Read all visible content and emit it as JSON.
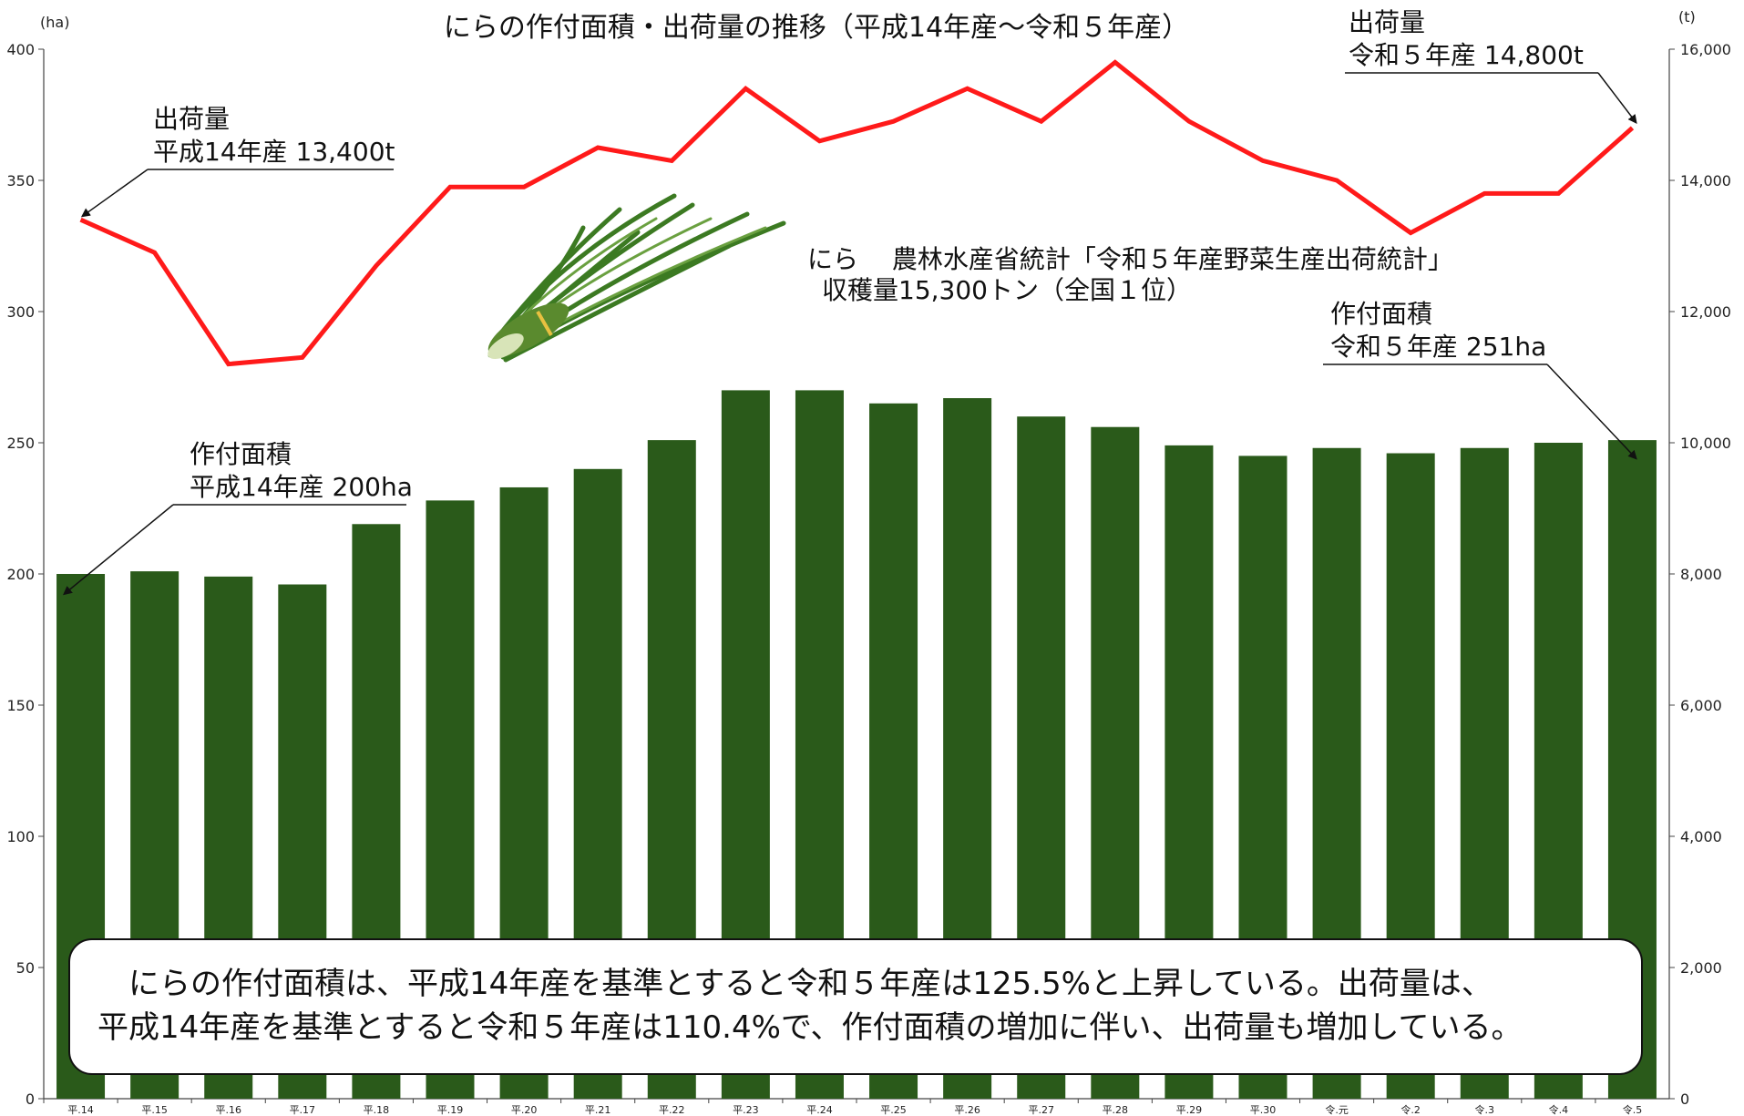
{
  "chart_data": {
    "type": "bar+line",
    "title": "にらの作付面積・出荷量の推移（平成14年産～令和５年産）",
    "y_left_unit": "(ha)",
    "y_right_unit": "(t)",
    "y_left_ticks": [
      "0",
      "50",
      "100",
      "150",
      "200",
      "250",
      "300",
      "350",
      "400"
    ],
    "y_right_ticks": [
      "0",
      "2,000",
      "4,000",
      "6,000",
      "8,000",
      "10,000",
      "12,000",
      "14,000",
      "16,000"
    ],
    "y_left_range": [
      0,
      400
    ],
    "y_right_range": [
      0,
      16000
    ],
    "categories": [
      "平.14",
      "平.15",
      "平.16",
      "平.17",
      "平.18",
      "平.19",
      "平.20",
      "平.21",
      "平.22",
      "平.23",
      "平.24",
      "平.25",
      "平.26",
      "平.27",
      "平.28",
      "平.29",
      "平.30",
      "令.元",
      "令.2",
      "令.3",
      "令.4",
      "令.5"
    ],
    "series": [
      {
        "type": "bar",
        "axis": "left",
        "color": "#2a5a1a",
        "values": [
          200,
          201,
          199,
          196,
          219,
          228,
          233,
          240,
          251,
          270,
          270,
          265,
          267,
          260,
          256,
          249,
          245,
          248,
          246,
          248,
          250,
          251
        ]
      },
      {
        "type": "line",
        "axis": "right",
        "color": "#ff1a1a",
        "values": [
          13400,
          12900,
          11200,
          11300,
          12700,
          13900,
          13900,
          14500,
          14300,
          15400,
          14600,
          14900,
          15400,
          14900,
          15800,
          14900,
          14300,
          14000,
          13200,
          13800,
          13800,
          14800
        ]
      }
    ],
    "annotations": {
      "ship_start": [
        "出荷量",
        "平成14年産 13,400t"
      ],
      "ship_end": [
        "出荷量",
        "令和５年産 14,800t"
      ],
      "area_start": [
        "作付面積",
        "平成14年産 200ha"
      ],
      "area_end": [
        "作付面積",
        "令和５年産 251ha"
      ],
      "info": [
        "にら　 農林水産省統計「令和５年産野菜生産出荷統計」",
        "収穫量15,300トン（全国１位）"
      ]
    },
    "grid": false,
    "legend": "none"
  },
  "summary": [
    "にらの作付面積は、平成14年産を基準とすると令和５年産は125.5%と上昇している。出荷量は、",
    "平成14年産を基準とすると令和５年産は110.4%で、作付面積の増加に伴い、出荷量も増加している。"
  ]
}
